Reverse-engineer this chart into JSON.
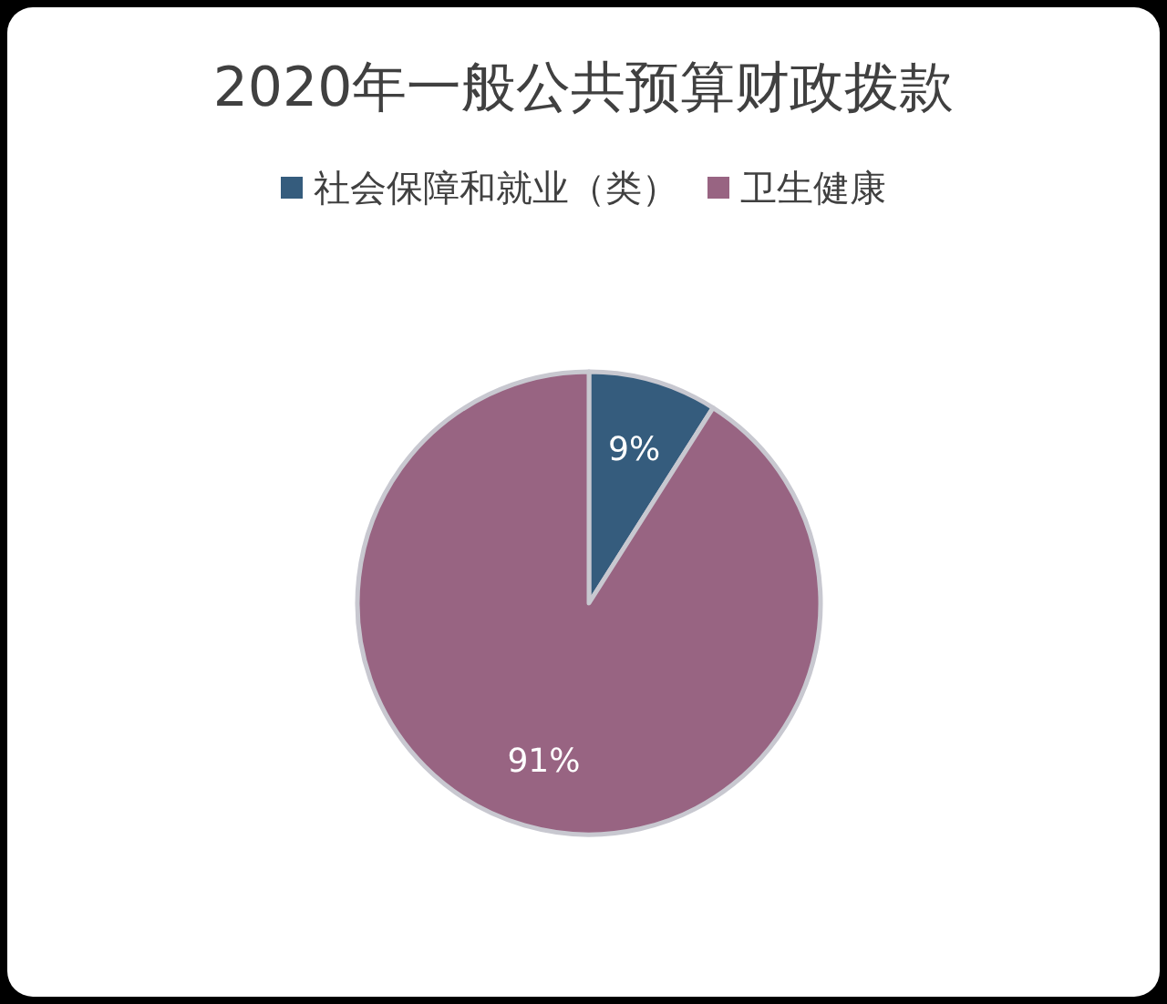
{
  "chart_data": {
    "type": "pie",
    "title": "2020年一般公共预算财政拨款",
    "categories": [
      "社会保障和就业（类）",
      "卫生健康"
    ],
    "values": [
      9,
      91
    ],
    "colors": [
      "#355c7d",
      "#986482"
    ],
    "value_labels": [
      "9%",
      "91%"
    ],
    "legend": "top"
  }
}
